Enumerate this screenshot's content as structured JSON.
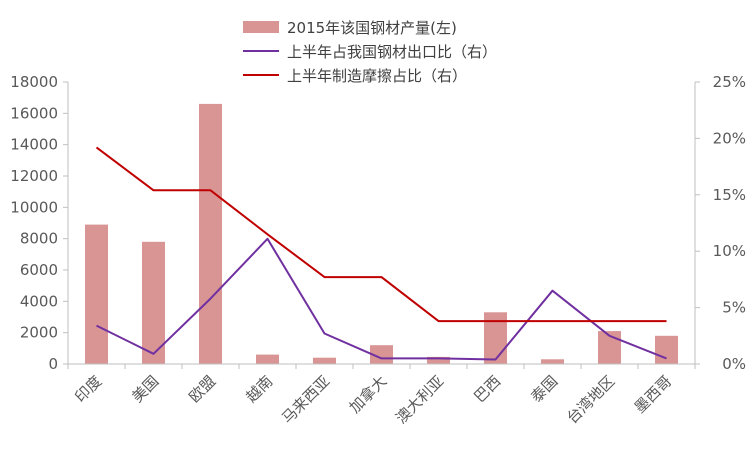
{
  "chart_data": {
    "type": "bar",
    "categories": [
      "印度",
      "美国",
      "欧盟",
      "越南",
      "马来西亚",
      "加拿大",
      "澳大利亚",
      "巴西",
      "泰国",
      "台湾地区",
      "墨西哥"
    ],
    "series": [
      {
        "name": "2015年该国钢材产量(左)",
        "type": "bar",
        "axis": "left",
        "color": "#d99594",
        "values": [
          8900,
          7800,
          16600,
          600,
          400,
          1200,
          450,
          3300,
          300,
          2100,
          1800
        ]
      },
      {
        "name": "上半年占我国钢材出口比（右）",
        "type": "line",
        "axis": "right",
        "color": "#7030a0",
        "values": [
          0.034,
          0.009,
          0.058,
          0.111,
          0.027,
          0.005,
          0.005,
          0.004,
          0.065,
          0.025,
          0.005
        ]
      },
      {
        "name": "上半年制造摩擦占比（右）",
        "type": "line",
        "axis": "right",
        "color": "#c00000",
        "values": [
          0.192,
          0.154,
          0.154,
          0.115,
          0.077,
          0.077,
          0.038,
          0.038,
          0.038,
          0.038,
          0.038
        ]
      }
    ],
    "y_left": {
      "ylim": [
        0,
        18000
      ],
      "ticks": [
        "0",
        "2000",
        "4000",
        "6000",
        "8000",
        "10000",
        "12000",
        "14000",
        "16000",
        "18000"
      ]
    },
    "y_right": {
      "ylim": [
        0,
        0.25
      ],
      "ticks": [
        "0%",
        "5%",
        "10%",
        "15%",
        "20%",
        "25%"
      ]
    },
    "legend_position": "top-center",
    "grid": false,
    "axis_color": "#bfbfbf"
  }
}
